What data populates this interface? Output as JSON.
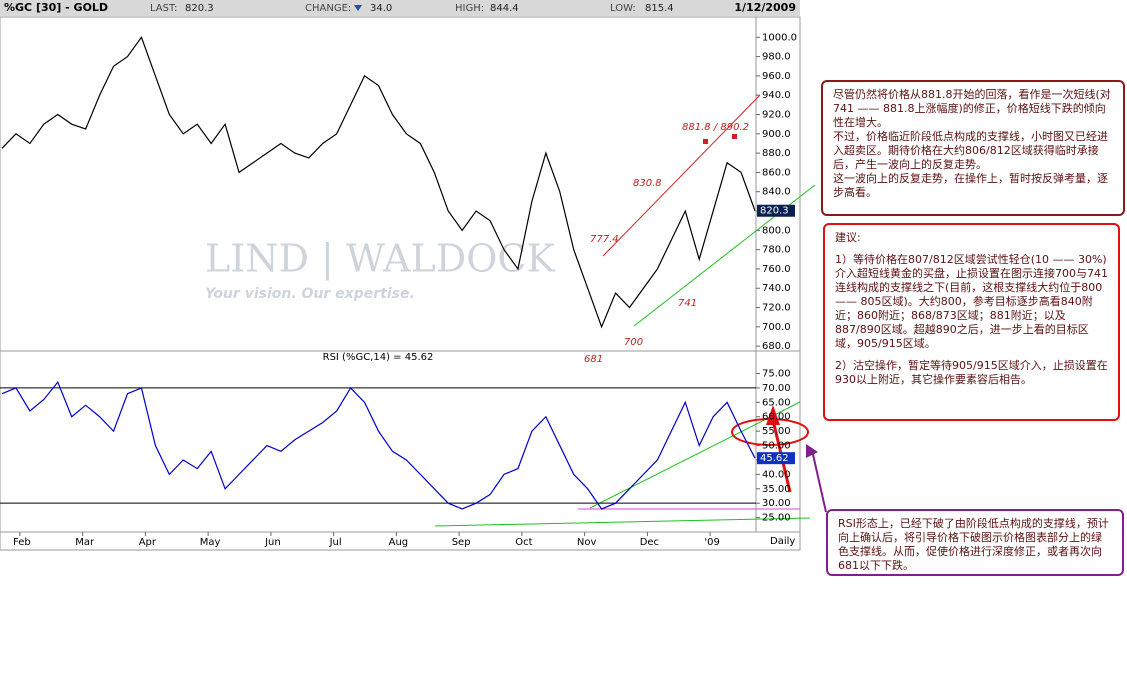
{
  "header": {
    "symbol": "%GC [30] - GOLD",
    "stats": [
      {
        "label": "LAST:",
        "value": "820.3"
      },
      {
        "label": "CHANGE:",
        "value": "34.0"
      },
      {
        "label": "HIGH:",
        "value": "844.4"
      },
      {
        "label": "LOW:",
        "value": "815.4"
      }
    ],
    "date": "1/12/2009"
  },
  "watermark": {
    "brand": "LIND | WALDOCK",
    "tagline": "Your vision. Our expertise."
  },
  "period": "Daily",
  "chart_data": [
    {
      "type": "line",
      "color": "#000000",
      "x": [
        0,
        1,
        2,
        3,
        4,
        5,
        6,
        7,
        8,
        9,
        10,
        11,
        12,
        13,
        14,
        15,
        16,
        17,
        18,
        19,
        20,
        21,
        22,
        23,
        24,
        25,
        26,
        27,
        28,
        29,
        30,
        31,
        32,
        33,
        34,
        35,
        36,
        37,
        38,
        39,
        40,
        41,
        42,
        43,
        44,
        45,
        46,
        47,
        48,
        49,
        50,
        51,
        52,
        53,
        54
      ],
      "series": [
        {
          "values": [
            885,
            900,
            890,
            910,
            920,
            910,
            905,
            940,
            970,
            980,
            1000,
            960,
            920,
            900,
            910,
            890,
            910,
            860,
            870,
            880,
            890,
            880,
            875,
            890,
            900,
            930,
            960,
            950,
            920,
            900,
            890,
            860,
            820,
            800,
            820,
            810,
            780,
            760,
            830,
            880,
            840,
            780,
            740,
            700,
            735,
            720,
            740,
            760,
            790,
            820,
            770,
            820,
            870,
            860,
            820.3
          ]
        }
      ],
      "current": 820.3,
      "xlim": [
        0,
        54
      ],
      "xticks": [
        {
          "value": 2,
          "label": "Feb"
        },
        {
          "value": 6.5,
          "label": "Mar"
        },
        {
          "value": 11,
          "label": "Apr"
        },
        {
          "value": 15.5,
          "label": "May"
        },
        {
          "value": 20,
          "label": "Jun"
        },
        {
          "value": 24.5,
          "label": "Jul"
        },
        {
          "value": 29,
          "label": "Aug"
        },
        {
          "value": 33.5,
          "label": "Sep"
        },
        {
          "value": 38,
          "label": "Oct"
        },
        {
          "value": 42.5,
          "label": "Nov"
        },
        {
          "value": 47,
          "label": "Dec"
        },
        {
          "value": 51.5,
          "label": "'09"
        }
      ],
      "ylim": [
        676,
        1020
      ],
      "yticks": [
        {
          "value": 680,
          "label": "680.0"
        },
        {
          "value": 700,
          "label": "700.0"
        },
        {
          "value": 720,
          "label": "720.0"
        },
        {
          "value": 740,
          "label": "740.0"
        },
        {
          "value": 760,
          "label": "760.0"
        },
        {
          "value": 780,
          "label": "780.0"
        },
        {
          "value": 800,
          "label": "800.0"
        },
        {
          "value": 820,
          "label": "820.0"
        },
        {
          "value": 840,
          "label": "840.0"
        },
        {
          "value": 860,
          "label": "860.0"
        },
        {
          "value": 880,
          "label": "880.0"
        },
        {
          "value": 900,
          "label": "900.0"
        },
        {
          "value": 920,
          "label": "920.0"
        },
        {
          "value": 940,
          "label": "940.0"
        },
        {
          "value": 960,
          "label": "960.0"
        },
        {
          "value": 980,
          "label": "980.0"
        },
        {
          "value": 1000,
          "label": "1000.0"
        }
      ],
      "annotations": [
        "881.8 / 890.2",
        "830.8",
        "777.4",
        "741",
        "700",
        "681"
      ]
    },
    {
      "type": "line",
      "title": "RSI (%GC,14) = 45.62",
      "color": "#0000cc",
      "x": [
        0,
        1,
        2,
        3,
        4,
        5,
        6,
        7,
        8,
        9,
        10,
        11,
        12,
        13,
        14,
        15,
        16,
        17,
        18,
        19,
        20,
        21,
        22,
        23,
        24,
        25,
        26,
        27,
        28,
        29,
        30,
        31,
        32,
        33,
        34,
        35,
        36,
        37,
        38,
        39,
        40,
        41,
        42,
        43,
        44,
        45,
        46,
        47,
        48,
        49,
        50,
        51,
        52,
        53,
        54
      ],
      "series": [
        {
          "values": [
            68,
            70,
            62,
            66,
            72,
            60,
            64,
            60,
            55,
            68,
            70,
            50,
            40,
            45,
            42,
            48,
            35,
            40,
            45,
            50,
            48,
            52,
            55,
            58,
            62,
            70,
            65,
            55,
            48,
            45,
            40,
            35,
            30,
            28,
            30,
            33,
            40,
            42,
            55,
            60,
            50,
            40,
            35,
            28,
            30,
            35,
            40,
            45,
            55,
            65,
            50,
            60,
            65,
            55,
            45.62
          ]
        }
      ],
      "current": 45.62,
      "levels": [
        30,
        70
      ],
      "xlim": [
        0,
        54
      ],
      "ylim": [
        20,
        79
      ],
      "yticks": [
        {
          "value": 25,
          "label": "25.00"
        },
        {
          "value": 30,
          "label": "30.00"
        },
        {
          "value": 35,
          "label": "35.00"
        },
        {
          "value": 40,
          "label": "40.00"
        },
        {
          "value": 45,
          "label": "45.00"
        },
        {
          "value": 50,
          "label": "50.00"
        },
        {
          "value": 55,
          "label": "55.00"
        },
        {
          "value": 60,
          "label": "60.00"
        },
        {
          "value": 65,
          "label": "65.00"
        },
        {
          "value": 70,
          "label": "70.00"
        },
        {
          "value": 75,
          "label": "75.00"
        }
      ]
    }
  ],
  "notes": [
    {
      "paragraphs": [
        "尽管仍然将价格从881.8开始的回落，看作是一次短线(对741 —— 881.8上涨幅度)的修正，价格短线下跌的倾向性在增大。",
        "不过，价格临近阶段低点构成的支撑线，小时图又已经进入超卖区。期待价格在大约806/812区域获得临时承接后，产生一波向上的反复走势。",
        "这一波向上的反复走势，在操作上，暂时按反弹考量，逐步高看。"
      ]
    },
    {
      "paragraphs": [
        "建议:",
        "1）等待价格在807/812区域尝试性轻仓(10 —— 30%)介入超短线黄金的买盘，止损设置在图示连接700与741连线构成的支撑线之下(目前，这根支撑线大约位于800 —— 805区域)。大约800，参考目标逐步高看840附近；860附近；868/873区域；881附近；以及887/890区域。超越890之后，进一步上看的目标区域，905/915区域。",
        "2）沽空操作，暂定等待905/915区域介入，止损设置在930以上附近，其它操作要素容后相告。"
      ]
    },
    {
      "paragraphs": [
        "RSI形态上，已经下破了由阶段低点构成的支撑线，预计向上确认后，将引导价格下破图示价格图表部分上的绿色支撑线。从而，促使价格进行深度修正，或者再次向681以下下跌。"
      ]
    }
  ]
}
